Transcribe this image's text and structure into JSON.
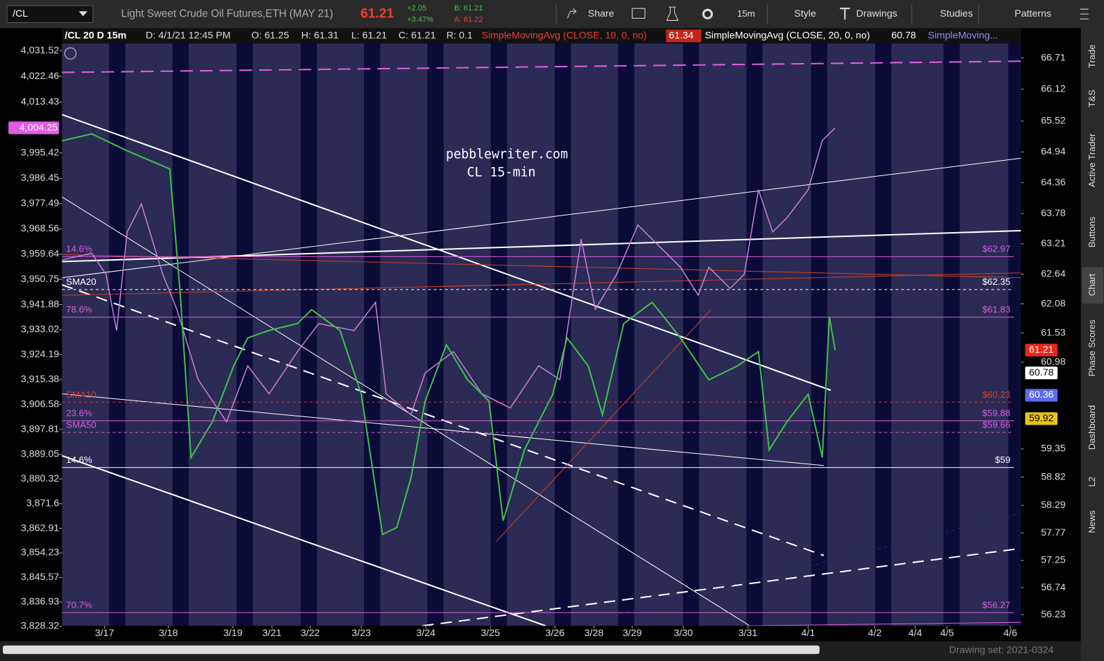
{
  "toolbar": {
    "symbol": "/CL",
    "description": "Light Sweet Crude Oil Futures,ETH (MAY 21)",
    "last": "61.21",
    "change": "+2.05",
    "change_pct": "+3.47%",
    "bid": "B: 61.21",
    "ask": "A: 61.22",
    "buttons": [
      "Share",
      "15m",
      "Style",
      "Drawings",
      "Studies",
      "Patterns"
    ]
  },
  "header": {
    "symbol": "/CL 20 D 15m",
    "date": "D: 4/1/21 12:45 PM",
    "open": "O: 61.25",
    "high": "H: 61.31",
    "low": "L: 61.21",
    "close": "C: 61.21",
    "range": "R: 0.1",
    "study1": "SimpleMovingAvg (CLOSE, 10, 0, no)",
    "study1_value": "61.34",
    "study2": "SimpleMovingAvg (CLOSE, 20, 0, no)",
    "study2_value": "60.78",
    "study3": "SimpleMoving..."
  },
  "chart_data": {
    "type": "line",
    "annotations": [
      "pebblewriter.com",
      "CL 15-min"
    ],
    "xlim": [
      0,
      135.2
    ],
    "xticks": [
      {
        "value": 6,
        "label": "3/17"
      },
      {
        "value": 15,
        "label": "3/18"
      },
      {
        "value": 24.1,
        "label": "3/19"
      },
      {
        "value": 29.6,
        "label": "3/21"
      },
      {
        "value": 35,
        "label": "3/22"
      },
      {
        "value": 42.2,
        "label": "3/23"
      },
      {
        "value": 51.3,
        "label": "3/24"
      },
      {
        "value": 60.4,
        "label": "3/25"
      },
      {
        "value": 69.5,
        "label": "3/26"
      },
      {
        "value": 75,
        "label": "3/28"
      },
      {
        "value": 80.4,
        "label": "3/29"
      },
      {
        "value": 87.6,
        "label": "3/30"
      },
      {
        "value": 96.7,
        "label": "3/31"
      },
      {
        "value": 105.2,
        "label": "4/1"
      },
      {
        "value": 114.6,
        "label": "4/2"
      },
      {
        "value": 120.3,
        "label": "4/4"
      },
      {
        "value": 124.8,
        "label": "4/5"
      },
      {
        "value": 133.7,
        "label": "4/6"
      }
    ],
    "ylim": [
      56.02,
      67.27
    ],
    "yticks": [
      66.71,
      66.12,
      65.52,
      64.94,
      64.36,
      63.78,
      63.21,
      62.64,
      62.08,
      61.53,
      60.98,
      59.35,
      58.82,
      58.29,
      57.77,
      57.25,
      56.74,
      56.23
    ],
    "y2lim": [
      3828.49,
      4039.46
    ],
    "y2ticks": [
      {
        "value": 4031.52,
        "label": "4,031.52"
      },
      {
        "value": 4022.46,
        "label": "4,022.46"
      },
      {
        "value": 4013.43,
        "label": "4,013.43"
      },
      {
        "value": 3995.42,
        "label": "3,995.42"
      },
      {
        "value": 3986.45,
        "label": "3,986.45"
      },
      {
        "value": 3977.49,
        "label": "3,977.49"
      },
      {
        "value": 3968.56,
        "label": "3,968.56"
      },
      {
        "value": 3959.64,
        "label": "3,959.64"
      },
      {
        "value": 3950.75,
        "label": "3,950.75"
      },
      {
        "value": 3941.88,
        "label": "3,941.88"
      },
      {
        "value": 3933.02,
        "label": "3,933.02"
      },
      {
        "value": 3924.19,
        "label": "3,924.19"
      },
      {
        "value": 3915.38,
        "label": "3,915.38"
      },
      {
        "value": 3906.58,
        "label": "3,906.58"
      },
      {
        "value": 3897.81,
        "label": "3,897.81"
      },
      {
        "value": 3889.05,
        "label": "3,889.05"
      },
      {
        "value": 3880.32,
        "label": "3,880.32"
      },
      {
        "value": 3871.6,
        "label": "3,871.6"
      },
      {
        "value": 3862.91,
        "label": "3,862.91"
      },
      {
        "value": 3854.23,
        "label": "3,854.23"
      },
      {
        "value": 3845.57,
        "label": "3,845.57"
      },
      {
        "value": 3836.93,
        "label": "3,836.93"
      },
      {
        "value": 3828.32,
        "label": "3,828.32"
      }
    ],
    "y2_highlight": {
      "value": 4004.25,
      "label": "4,004.25",
      "color": "#e05ce6"
    },
    "price_tags": [
      {
        "value": 61.21,
        "color": "#e8261c"
      },
      {
        "value": 60.78,
        "color": "#ffffff"
      },
      {
        "value": 60.36,
        "color": "#5b6cf0"
      },
      {
        "value": 59.92,
        "color": "#e5c21a"
      }
    ],
    "levels": [
      {
        "name": "14.6%",
        "value": 62.97,
        "label": "$62.97",
        "color": "#d65ed8",
        "dash": false
      },
      {
        "name": "SMA20",
        "value": 62.35,
        "label": "$62.35",
        "color": "#ffffff",
        "dash": true
      },
      {
        "name": "78.6%",
        "value": 61.83,
        "label": "$61.83",
        "color": "#d65ed8",
        "dash": false
      },
      {
        "name": "SMA10",
        "value": 60.23,
        "label": "$60.23",
        "color": "#e0392b",
        "dash": true
      },
      {
        "name": "23.6%",
        "value": 59.88,
        "label": "$59.88",
        "color": "#d65ed8",
        "dash": false
      },
      {
        "name": "SMA50",
        "value": 59.66,
        "label": "$59.66",
        "color": "#d65ed8",
        "dash": true
      },
      {
        "name": "14.6%",
        "value": 59,
        "label": "$59",
        "color": "#ffffff",
        "dash": false
      },
      {
        "name": "70.7%",
        "value": 56.27,
        "label": "$56.27",
        "color": "#d65ed8",
        "dash": false
      }
    ],
    "series": [
      {
        "color": "#c77ddc",
        "axis": "y2",
        "x": [
          0,
          4.2,
          6.2,
          7.7,
          9.2,
          11.2,
          14.2,
          16.2,
          19.2,
          23.2,
          26.2,
          29.2,
          33.2,
          36.2,
          41.2,
          44.2,
          45.7,
          49.2,
          51.2,
          55.2,
          59.2,
          63.2,
          67.2,
          70.2,
          71.7,
          73.2,
          75.2,
          78.2,
          81.2,
          84.2,
          87.2,
          89.7,
          91.2,
          94.2,
          96.2,
          98.2,
          100.2,
          102.2,
          105.2,
          107.2,
          109
        ],
        "values": [
          3957.6,
          3960.0,
          3952.6,
          3932.7,
          3967.5,
          3977.4,
          3952.6,
          3940.2,
          3915.4,
          3900.5,
          3920.3,
          3910.4,
          3925.3,
          3935.2,
          3932.7,
          3942.7,
          3910.4,
          3903.0,
          3917.8,
          3925.3,
          3910.4,
          3905.4,
          3920.3,
          3915.4,
          3940.2,
          3965.0,
          3940.2,
          3952.6,
          3970.0,
          3962.5,
          3955.1,
          3945.2,
          3955.1,
          3947.6,
          3952.6,
          3982.4,
          3967.5,
          3972.5,
          3982.4,
          3999.8,
          4004.25
        ]
      },
      {
        "color": "#3fbf4a",
        "x": [
          0,
          4.2,
          9.2,
          15.2,
          16.7,
          18.2,
          21.2,
          24.2,
          26.2,
          29.2,
          33.2,
          35.2,
          39.2,
          42.2,
          45.2,
          47.2,
          49.2,
          51.2,
          54.2,
          57.2,
          60.2,
          62.2,
          65.2,
          69.2,
          71.2,
          74.2,
          76.2,
          79.2,
          83.2,
          87.2,
          91.2,
          95.2,
          98.2,
          99.7,
          102.2,
          105.2,
          107.2,
          108.2,
          109
        ],
        "values": [
          65.15,
          65.28,
          64.96,
          64.62,
          62.24,
          59.19,
          59.86,
          60.91,
          61.44,
          61.58,
          61.71,
          61.97,
          61.58,
          60.38,
          57.74,
          57.87,
          58.8,
          60.25,
          61.31,
          60.65,
          60.25,
          58.0,
          59.33,
          60.38,
          61.44,
          60.91,
          59.99,
          61.71,
          62.11,
          61.44,
          60.65,
          60.91,
          61.18,
          59.33,
          59.86,
          60.38,
          59.19,
          61.84,
          61.21
        ]
      }
    ]
  },
  "side_tabs": [
    "Trade",
    "T&S",
    "Active Trader",
    "Buttons",
    "Chart",
    "Phase Scores",
    "Dashboard",
    "L2",
    "News"
  ],
  "footer": {
    "drawing_set": "Drawing set: 2021-0324"
  }
}
